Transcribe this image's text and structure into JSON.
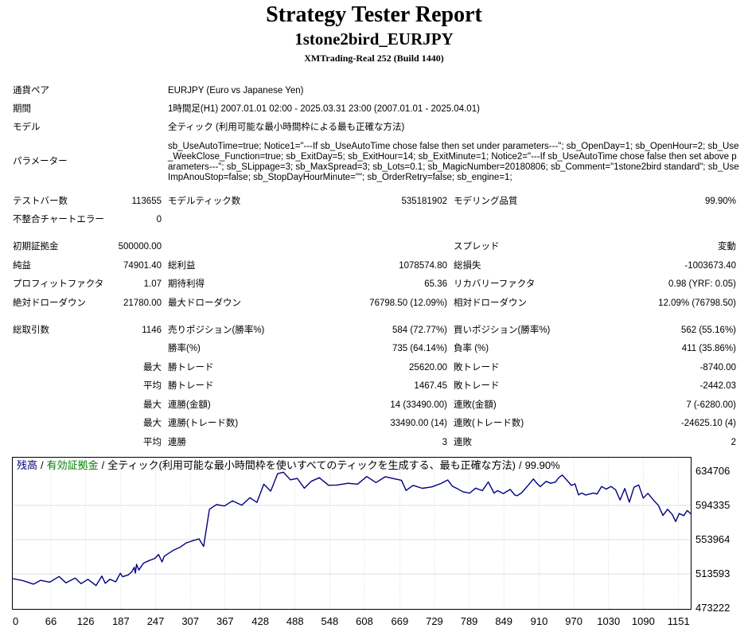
{
  "header": {
    "title": "Strategy Tester Report",
    "ea_name": "1stone2bird_EURJPY",
    "server": "XMTrading-Real 252 (Build 1440)"
  },
  "info": {
    "pair_label": "通貨ペア",
    "pair_value": "EURJPY (Euro vs Japanese Yen)",
    "period_label": "期間",
    "period_value": "1時間足(H1) 2007.01.01 02:00 - 2025.03.31 23:00 (2007.01.01 - 2025.04.01)",
    "model_label": "モデル",
    "model_value": "全ティック (利用可能な最小時間枠による最も正確な方法)",
    "params_label": "パラメーター",
    "params_value": "sb_UseAutoTime=true; Notice1=\"---If sb_UseAutoTime chose false then set under parameters---\"; sb_OpenDay=1; sb_OpenHour=2; sb_Use_WeekClose_Function=true; sb_ExitDay=5; sb_ExitHour=14; sb_ExitMinute=1; Notice2=\"---If sb_UseAutoTime chose false then set above parameters---\"; sb_SLippage=3; sb_MaxSpread=3; sb_Lots=0.1; sb_MagicNumber=20180806; sb_Comment=\"1stone2bird standard\"; sb_UseImpAnouStop=false; sb_StopDayHourMinute=\"\"; sb_OrderRetry=false; sb_engine=1;"
  },
  "stats": {
    "bars_label": "テストバー数",
    "bars_value": "113655",
    "ticks_label": "モデルティック数",
    "ticks_value": "535181902",
    "quality_label": "モデリング品質",
    "quality_value": "99.90%",
    "mismatch_label": "不整合チャートエラー",
    "mismatch_value": "0",
    "deposit_label": "初期証拠金",
    "deposit_value": "500000.00",
    "spread_label": "スプレッド",
    "spread_value": "変動",
    "net_label": "純益",
    "net_value": "74901.40",
    "gross_profit_label": "総利益",
    "gross_profit_value": "1078574.80",
    "gross_loss_label": "総損失",
    "gross_loss_value": "-1003673.40",
    "pf_label": "プロフィットファクタ",
    "pf_value": "1.07",
    "expected_label": "期待利得",
    "expected_value": "65.36",
    "recovery_label": "リカバリーファクタ",
    "recovery_value": "0.98 (YRF: 0.05)",
    "abs_dd_label": "絶対ドローダウン",
    "abs_dd_value": "21780.00",
    "max_dd_label": "最大ドローダウン",
    "max_dd_value": "76798.50 (12.09%)",
    "rel_dd_label": "相対ドローダウン",
    "rel_dd_value": "12.09% (76798.50)",
    "trades_label": "総取引数",
    "trades_value": "1146",
    "short_label": "売りポジション(勝率%)",
    "short_value": "584 (72.77%)",
    "long_label": "買いポジション(勝率%)",
    "long_value": "562 (55.16%)",
    "winrate_label": "勝率(%)",
    "winrate_value": "735 (64.14%)",
    "lossrate_label": "負率 (%)",
    "lossrate_value": "411 (35.86%)",
    "max_label": "最大",
    "avg_label": "平均",
    "win_trade_label": "勝トレード",
    "largest_win_value": "25620.00",
    "loss_trade_label": "敗トレード",
    "largest_loss_value": "-8740.00",
    "avg_win_value": "1467.45",
    "avg_loss_value": "-2442.03",
    "cons_win_amt_label": "連勝(金額)",
    "cons_win_amt_value": "14 (33490.00)",
    "cons_loss_amt_label": "連敗(金額)",
    "cons_loss_amt_value": "7 (-6280.00)",
    "cons_win_cnt_label": "連勝(トレード数)",
    "cons_win_cnt_value": "33490.00 (14)",
    "cons_loss_cnt_label": "連敗(トレード数)",
    "cons_loss_cnt_value": "-24625.10 (4)",
    "avg_cons_win_label": "連勝",
    "avg_cons_win_value": "3",
    "avg_cons_loss_label": "連敗",
    "avg_cons_loss_value": "2"
  },
  "chart_data": {
    "type": "line",
    "legend": {
      "balance": "残高",
      "sep1": "/",
      "equity": "有効証拠金",
      "sep2": "/",
      "model_text": "全ティック(利用可能な最小時間枠を使いすべてのティックを生成する、最も正確な方法)",
      "sep3": "/",
      "quality": "99.90%"
    },
    "colors": {
      "line": "#000080",
      "balance_label": "#000080",
      "equity_label": "#008000",
      "grid": "#c0c0c0"
    },
    "x_ticks": [
      "0",
      "66",
      "126",
      "187",
      "247",
      "307",
      "367",
      "428",
      "488",
      "548",
      "608",
      "669",
      "729",
      "789",
      "849",
      "910",
      "970",
      "1030",
      "1090",
      "1151"
    ],
    "y_ticks": [
      "634706",
      "594335",
      "553964",
      "513593",
      "473222"
    ],
    "xlim": [
      0,
      1172
    ],
    "ylim": [
      473222,
      634706
    ],
    "series": [
      {
        "x": [
          0,
          18,
          36,
          48,
          64,
          80,
          92,
          108,
          118,
          130,
          144,
          154,
          160,
          168,
          178,
          186,
          190,
          200,
          206,
          210,
          212,
          214,
          218,
          226,
          236,
          246,
          252,
          258,
          262,
          268,
          278,
          290,
          300,
          310,
          322,
          330,
          340,
          352,
          366,
          380,
          396,
          410,
          422,
          434,
          446,
          458,
          468,
          480,
          492,
          504,
          516,
          530,
          546,
          560,
          580,
          596,
          612,
          628,
          644,
          660,
          672,
          680,
          692,
          708,
          724,
          740,
          752,
          760,
          768,
          778,
          790,
          800,
          806,
          812,
          822,
          832,
          838,
          848,
          860,
          868,
          872,
          880,
          892,
          900,
          906,
          912,
          922,
          930,
          938,
          944,
          950,
          966,
          972,
          978,
          984,
          990,
          1004,
          1010,
          1018,
          1026,
          1034,
          1042,
          1050,
          1058,
          1066,
          1074,
          1082,
          1090,
          1098,
          1108,
          1116,
          1124,
          1132,
          1140,
          1146,
          1152,
          1160,
          1166,
          1172
        ],
        "y": [
          508000,
          505500,
          501500,
          506000,
          503800,
          510500,
          503000,
          508600,
          502000,
          507200,
          499800,
          511000,
          502500,
          507200,
          504200,
          514300,
          510200,
          512500,
          516300,
          521400,
          514500,
          524900,
          518100,
          526300,
          529400,
          531900,
          536500,
          527700,
          534400,
          537200,
          541600,
          545300,
          550100,
          552500,
          554800,
          546000,
          589800,
          595300,
          593700,
          599800,
          594500,
          603400,
          597900,
          619300,
          611200,
          631800,
          633500,
          624600,
          626200,
          614600,
          622800,
          627000,
          618100,
          618400,
          620400,
          619400,
          628400,
          621300,
          628200,
          625700,
          624000,
          612000,
          618000,
          614500,
          616100,
          620200,
          624400,
          617000,
          614300,
          610500,
          608900,
          614700,
          613200,
          611900,
          622000,
          608900,
          611800,
          608300,
          613200,
          606500,
          605800,
          609400,
          618900,
          625500,
          620500,
          616500,
          622700,
          620400,
          621800,
          627100,
          630200,
          617900,
          619800,
          606700,
          609000,
          606600,
          609000,
          607800,
          616700,
          613600,
          616700,
          612900,
          600800,
          614300,
          598200,
          615800,
          618500,
          603000,
          608600,
          600300,
          594500,
          582500,
          589700,
          583800,
          575300,
          584800,
          582300,
          588300,
          584500
        ]
      }
    ]
  }
}
